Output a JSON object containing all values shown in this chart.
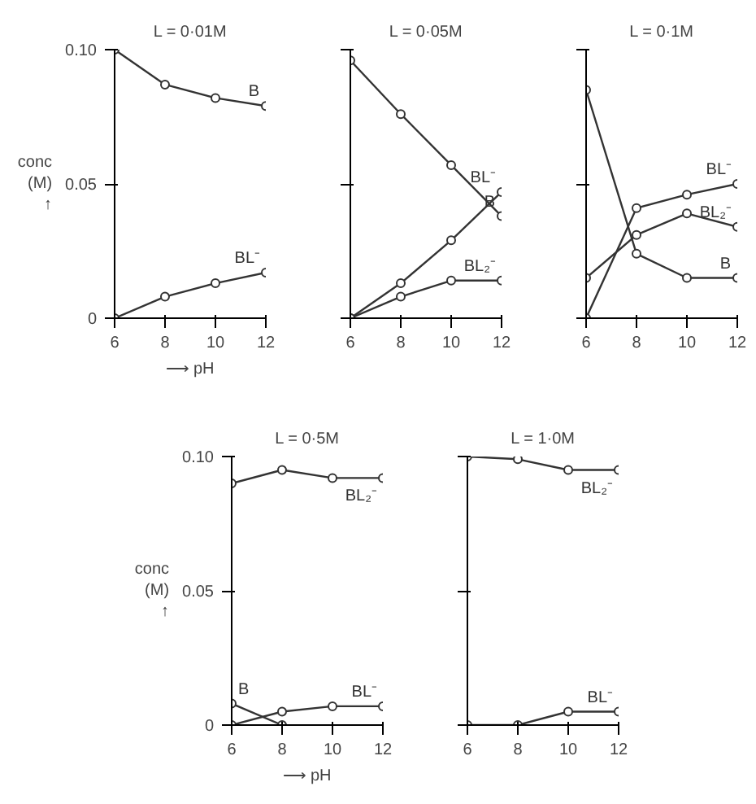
{
  "chart_data": [
    {
      "type": "line",
      "title": "L = 0·01M",
      "xlabel": "⟶ pH",
      "ylabel": "conc\n(M)\n↑",
      "x": [
        6,
        8,
        10,
        12
      ],
      "xlim": [
        6,
        12
      ],
      "ylim": [
        0,
        0.1
      ],
      "xticks": [
        6,
        8,
        10,
        12
      ],
      "yticks": [
        0,
        0.05,
        {
          "value": 0.1,
          "label": "0.10"
        }
      ],
      "marker": "circle",
      "grid": false,
      "series": [
        {
          "name": "B",
          "color": "#333333",
          "values": [
            0.1,
            0.087,
            0.082,
            0.079
          ]
        },
        {
          "name": "BL⁻",
          "color": "#333333",
          "values": [
            0,
            0.008,
            0.013,
            0.017
          ]
        }
      ]
    },
    {
      "type": "line",
      "title": "L = 0·05M",
      "x": [
        6,
        8,
        10,
        12
      ],
      "xlim": [
        6,
        12
      ],
      "ylim": [
        0,
        0.1
      ],
      "xticks": [
        6,
        8,
        10,
        12
      ],
      "yticks": [
        0,
        0.05,
        0.1
      ],
      "tick_labels": "x",
      "marker": "circle",
      "grid": false,
      "series": [
        {
          "name": "B",
          "color": "#333333",
          "values": [
            0.096,
            0.076,
            0.057,
            0.038
          ]
        },
        {
          "name": "BL⁻",
          "color": "#333333",
          "values": [
            0,
            0.013,
            0.029,
            0.047
          ]
        },
        {
          "name": "BL₂⁻",
          "color": "#333333",
          "values": [
            0,
            0.008,
            0.014,
            0.014
          ]
        }
      ]
    },
    {
      "type": "line",
      "title": "L = 0·1M",
      "x": [
        6,
        8,
        10,
        12
      ],
      "xlim": [
        6,
        12
      ],
      "ylim": [
        0,
        0.1
      ],
      "xticks": [
        6,
        8,
        10,
        12
      ],
      "yticks": [
        0,
        0.05,
        0.1
      ],
      "tick_labels": "x",
      "marker": "circle",
      "grid": false,
      "series": [
        {
          "name": "B",
          "color": "#333333",
          "values": [
            0.085,
            0.024,
            0.015,
            0.015
          ]
        },
        {
          "name": "BL⁻",
          "color": "#333333",
          "values": [
            0,
            0.041,
            0.046,
            0.05
          ]
        },
        {
          "name": "BL₂⁻",
          "color": "#333333",
          "values": [
            0.015,
            0.031,
            0.039,
            0.034
          ]
        }
      ]
    },
    {
      "type": "line",
      "title": "L = 0·5M",
      "xlabel": "⟶ pH",
      "ylabel": "conc\n(M)\n↑",
      "x": [
        6,
        8,
        10,
        12
      ],
      "xlim": [
        6,
        12
      ],
      "ylim": [
        0,
        0.1
      ],
      "xticks": [
        6,
        8,
        10,
        12
      ],
      "yticks": [
        0,
        0.05,
        {
          "value": 0.1,
          "label": "0.10"
        }
      ],
      "marker": "circle",
      "grid": false,
      "series": [
        {
          "name": "BL₂⁻",
          "color": "#333333",
          "values": [
            0.09,
            0.095,
            0.092,
            0.092
          ]
        },
        {
          "name": "B",
          "color": "#333333",
          "x": [
            6,
            8
          ],
          "values": [
            0.008,
            0
          ]
        },
        {
          "name": "BL⁻",
          "color": "#333333",
          "values": [
            0,
            0.005,
            0.007,
            0.007
          ]
        }
      ]
    },
    {
      "type": "line",
      "title": "L = 1·0M",
      "x": [
        6,
        8,
        10,
        12
      ],
      "xlim": [
        6,
        12
      ],
      "ylim": [
        0,
        0.1
      ],
      "xticks": [
        6,
        8,
        10,
        12
      ],
      "yticks": [
        0,
        0.05,
        0.1
      ],
      "tick_labels": "x",
      "marker": "circle",
      "grid": false,
      "series": [
        {
          "name": "BL₂⁻",
          "color": "#333333",
          "values": [
            0.1,
            0.099,
            0.095,
            0.095
          ]
        },
        {
          "name": "BL⁻",
          "color": "#333333",
          "values": [
            0,
            0,
            0.005,
            0.005
          ]
        }
      ]
    }
  ]
}
